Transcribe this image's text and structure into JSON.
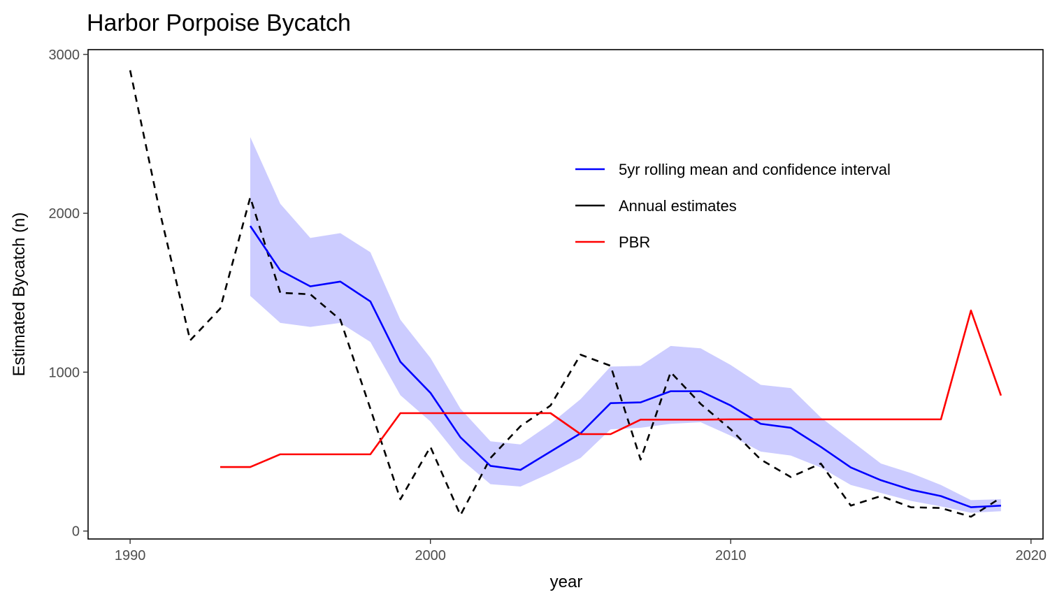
{
  "chart_data": {
    "type": "line",
    "title": "Harbor Porpoise Bycatch",
    "xlabel": "year",
    "ylabel": "Estimated Bycatch (n)",
    "xlim": [
      1988.6,
      2020.4
    ],
    "ylim": [
      -50,
      3030
    ],
    "xticks": [
      1990,
      2000,
      2010,
      2020
    ],
    "yticks": [
      0,
      1000,
      2000,
      3000
    ],
    "grid": false,
    "legend_position": "top-right",
    "colors": {
      "rolling": "#0000ff",
      "ribbon": "#ccccff",
      "annual": "#000000",
      "pbr": "#ff0000"
    },
    "series": [
      {
        "name": "5yr rolling mean and confidence interval",
        "style": "solid",
        "x": [
          1994,
          1995,
          1996,
          1997,
          1998,
          1999,
          2000,
          2001,
          2002,
          2003,
          2004,
          2005,
          2006,
          2007,
          2008,
          2009,
          2010,
          2011,
          2012,
          2013,
          2014,
          2015,
          2016,
          2017,
          2018,
          2019
        ],
        "y": [
          1920,
          1640,
          1540,
          1570,
          1445,
          1065,
          870,
          590,
          410,
          385,
          500,
          615,
          805,
          810,
          880,
          880,
          790,
          675,
          650,
          530,
          400,
          320,
          260,
          220,
          150,
          160
        ],
        "lower": [
          1480,
          1310,
          1285,
          1310,
          1190,
          855,
          690,
          455,
          295,
          280,
          365,
          460,
          640,
          650,
          675,
          685,
          600,
          500,
          475,
          400,
          290,
          240,
          190,
          155,
          115,
          125
        ],
        "upper": [
          2480,
          2060,
          1845,
          1875,
          1755,
          1330,
          1090,
          770,
          565,
          545,
          675,
          830,
          1035,
          1040,
          1165,
          1150,
          1045,
          920,
          900,
          715,
          570,
          425,
          365,
          290,
          195,
          200
        ]
      },
      {
        "name": "Annual estimates",
        "style": "dashed",
        "x": [
          1990,
          1991,
          1992,
          1993,
          1994,
          1995,
          1996,
          1997,
          1998,
          1999,
          2000,
          2001,
          2002,
          2003,
          2004,
          2005,
          2006,
          2007,
          2008,
          2009,
          2010,
          2011,
          2012,
          2013,
          2014,
          2015,
          2016,
          2017,
          2018,
          2019
        ],
        "y": [
          2900,
          2000,
          1200,
          1400,
          2100,
          1500,
          1490,
          1330,
          770,
          200,
          530,
          100,
          460,
          660,
          790,
          1110,
          1040,
          450,
          1000,
          800,
          640,
          450,
          340,
          425,
          160,
          220,
          150,
          145,
          90,
          210
        ]
      },
      {
        "name": "PBR",
        "style": "solid",
        "x": [
          1993,
          1994,
          1995,
          1996,
          1997,
          1998,
          1999,
          2000,
          2001,
          2002,
          2003,
          2004,
          2005,
          2006,
          2007,
          2008,
          2009,
          2010,
          2011,
          2012,
          2013,
          2014,
          2015,
          2016,
          2017,
          2018,
          2019
        ],
        "y": [
          403,
          403,
          483,
          483,
          483,
          483,
          742,
          742,
          742,
          742,
          742,
          742,
          610,
          610,
          701,
          701,
          701,
          703,
          703,
          703,
          703,
          703,
          703,
          703,
          703,
          1388,
          853
        ]
      }
    ]
  }
}
